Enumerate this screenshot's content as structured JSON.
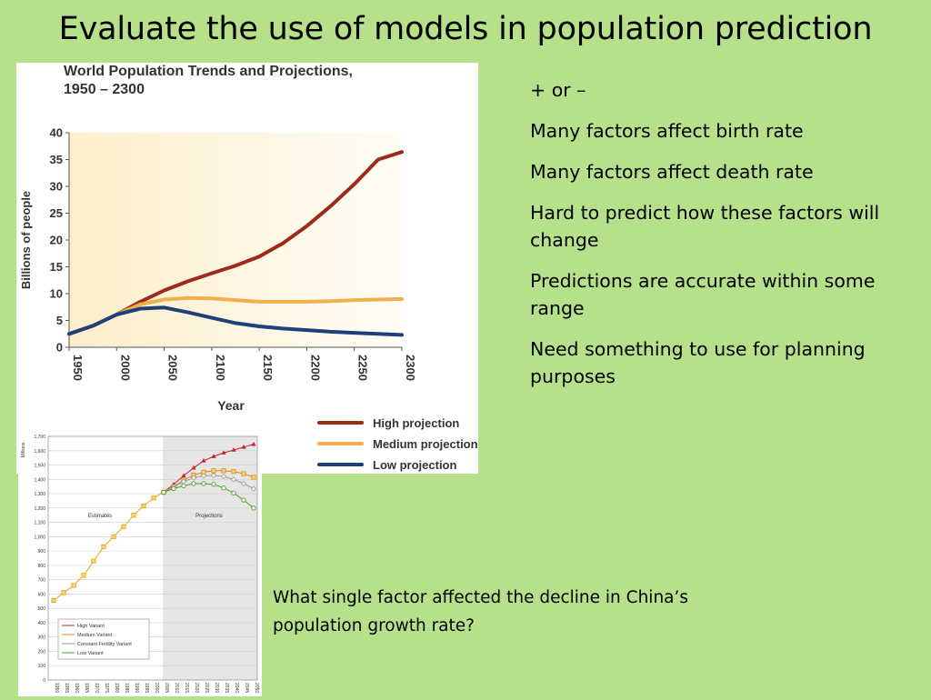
{
  "slide": {
    "title": "Evaluate the use of models in population prediction",
    "bullets": [
      "+ or –",
      "Many factors affect birth rate",
      "Many factors affect death rate",
      "Hard to predict how these factors will change",
      "Predictions are accurate within some range",
      "Need something to use for planning purposes"
    ],
    "question": "What single factor affected the decline in China’s population growth rate?"
  },
  "chart_data": [
    {
      "type": "line",
      "title": "World Population Trends and Projections, 1950 – 2300",
      "title_line1": "World Population Trends and Projections,",
      "title_line2": "1950 – 2300",
      "xlabel": "Year",
      "ylabel": "Billions of people",
      "xlim": [
        1950,
        2300
      ],
      "ylim": [
        0,
        40
      ],
      "x_ticks": [
        "1950",
        "2000",
        "2050",
        "2100",
        "2150",
        "2200",
        "2250",
        "2300"
      ],
      "y_ticks": [
        "0",
        "5",
        "10",
        "15",
        "20",
        "25",
        "30",
        "35",
        "40"
      ],
      "x": [
        1950,
        1975,
        2000,
        2025,
        2050,
        2075,
        2100,
        2125,
        2150,
        2175,
        2200,
        2225,
        2250,
        2275,
        2300
      ],
      "series": [
        {
          "name": "High projection",
          "color": "#9e2a1c",
          "values": [
            2.5,
            4.0,
            6.1,
            8.5,
            10.6,
            12.3,
            13.8,
            15.2,
            16.9,
            19.4,
            22.6,
            26.3,
            30.4,
            35.0,
            36.4
          ]
        },
        {
          "name": "Medium projection",
          "color": "#f2b04a",
          "values": [
            2.5,
            4.0,
            6.1,
            8.0,
            8.9,
            9.2,
            9.1,
            8.8,
            8.5,
            8.5,
            8.5,
            8.6,
            8.8,
            8.9,
            9.0
          ]
        },
        {
          "name": "Low projection",
          "color": "#1f3f7a",
          "values": [
            2.5,
            4.0,
            6.1,
            7.2,
            7.4,
            6.5,
            5.5,
            4.5,
            3.9,
            3.5,
            3.2,
            2.9,
            2.7,
            2.5,
            2.3
          ]
        }
      ]
    },
    {
      "type": "line",
      "ylabel": "Millions",
      "ylim": [
        0,
        1700
      ],
      "y_ticks": [
        "0",
        "100",
        "200",
        "300",
        "400",
        "500",
        "600",
        "700",
        "800",
        "900",
        "1,000",
        "1,100",
        "1,200",
        "1,300",
        "1,400",
        "1,500",
        "1,600",
        "1,700"
      ],
      "x_ticks": [
        "1950",
        "1955",
        "1960",
        "1965",
        "1970",
        "1975",
        "1980",
        "1985",
        "1990",
        "1995",
        "2000",
        "2005",
        "2010",
        "2015",
        "2020",
        "2025",
        "2030",
        "2035",
        "2040",
        "2045",
        "2050"
      ],
      "region_labels": [
        "Estimates",
        "Projections"
      ],
      "estimates": {
        "x": [
          1950,
          1955,
          1960,
          1965,
          1970,
          1975,
          1980,
          1985,
          1990,
          1995,
          2000,
          2005
        ],
        "values": [
          555,
          610,
          660,
          730,
          830,
          930,
          1000,
          1070,
          1150,
          1215,
          1270,
          1310
        ],
        "color": "#e8a210"
      },
      "projections_x": [
        2005,
        2010,
        2015,
        2020,
        2025,
        2030,
        2035,
        2040,
        2045,
        2050
      ],
      "series": [
        {
          "name": "High Variant",
          "color": "#c8202a",
          "marker": "triangle",
          "values": [
            1310,
            1365,
            1425,
            1480,
            1530,
            1560,
            1585,
            1605,
            1625,
            1645
          ]
        },
        {
          "name": "Medium Variant",
          "color": "#e08a10",
          "marker": "square",
          "values": [
            1310,
            1350,
            1395,
            1430,
            1450,
            1460,
            1460,
            1455,
            1440,
            1415
          ]
        },
        {
          "name": "Constant Fertility Variant",
          "color": "#9a9a9a",
          "marker": "diamond",
          "values": [
            1310,
            1345,
            1385,
            1410,
            1425,
            1428,
            1420,
            1400,
            1370,
            1335
          ]
        },
        {
          "name": "Low Variant",
          "color": "#4aa02a",
          "marker": "circle",
          "values": [
            1310,
            1335,
            1355,
            1370,
            1370,
            1365,
            1340,
            1305,
            1255,
            1200
          ]
        }
      ]
    }
  ]
}
